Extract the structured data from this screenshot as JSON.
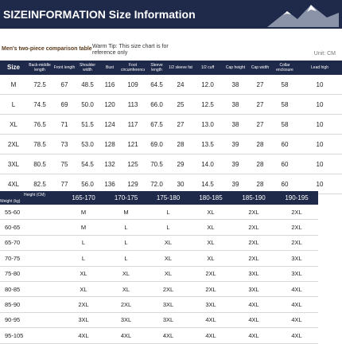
{
  "header": {
    "title": "SIZEINFORMATION Size Information"
  },
  "subtitle": "Men's two-piece comparison table",
  "warm_tip": "Warm Tip: This size chart is for reference only",
  "unit": "Unit: CM",
  "measurements": {
    "columns": [
      "Size",
      "Back-middle length",
      "Front length",
      "Shoulder width",
      "Bust",
      "Foot circumference",
      "Sleeve length",
      "1/2 sleeve fat",
      "1/2 cuff",
      "Cap height",
      "Cap width",
      "Collar enclosure",
      "Lead high"
    ],
    "rows": [
      [
        "M",
        "72.5",
        "67",
        "48.5",
        "116",
        "109",
        "64.5",
        "24",
        "12.0",
        "38",
        "27",
        "58",
        "10"
      ],
      [
        "L",
        "74.5",
        "69",
        "50.0",
        "120",
        "113",
        "66.0",
        "25",
        "12.5",
        "38",
        "27",
        "58",
        "10"
      ],
      [
        "XL",
        "76.5",
        "71",
        "51.5",
        "124",
        "117",
        "67.5",
        "27",
        "13.0",
        "38",
        "27",
        "58",
        "10"
      ],
      [
        "2XL",
        "78.5",
        "73",
        "53.0",
        "128",
        "121",
        "69.0",
        "28",
        "13.5",
        "39",
        "28",
        "60",
        "10"
      ],
      [
        "3XL",
        "80.5",
        "75",
        "54.5",
        "132",
        "125",
        "70.5",
        "29",
        "14.0",
        "39",
        "28",
        "60",
        "10"
      ],
      [
        "4XL",
        "82.5",
        "77",
        "56.0",
        "136",
        "129",
        "72.0",
        "30",
        "14.5",
        "39",
        "28",
        "60",
        "10"
      ]
    ]
  },
  "size_guide": {
    "corner_top": "Height (CM)",
    "corner_bottom": "Weight (kg)",
    "columns": [
      "165-170",
      "170-175",
      "175-180",
      "180-185",
      "185-190",
      "190-195"
    ],
    "rows": [
      {
        "weight": "55-60",
        "sizes": [
          "M",
          "M",
          "L",
          "XL",
          "2XL",
          "2XL"
        ]
      },
      {
        "weight": "60-65",
        "sizes": [
          "M",
          "L",
          "L",
          "XL",
          "2XL",
          "2XL"
        ]
      },
      {
        "weight": "65-70",
        "sizes": [
          "L",
          "L",
          "XL",
          "XL",
          "2XL",
          "2XL"
        ]
      },
      {
        "weight": "70-75",
        "sizes": [
          "L",
          "L",
          "XL",
          "XL",
          "2XL",
          "3XL"
        ]
      },
      {
        "weight": "75-80",
        "sizes": [
          "XL",
          "XL",
          "XL",
          "2XL",
          "3XL",
          "3XL"
        ]
      },
      {
        "weight": "80-85",
        "sizes": [
          "XL",
          "XL",
          "2XL",
          "2XL",
          "3XL",
          "4XL"
        ]
      },
      {
        "weight": "85-90",
        "sizes": [
          "2XL",
          "2XL",
          "3XL",
          "3XL",
          "4XL",
          "4XL"
        ]
      },
      {
        "weight": "90-95",
        "sizes": [
          "3XL",
          "3XL",
          "3XL",
          "4XL",
          "4XL",
          "4XL"
        ]
      },
      {
        "weight": "95-105",
        "sizes": [
          "4XL",
          "4XL",
          "4XL",
          "4XL",
          "4XL",
          "4XL"
        ]
      }
    ]
  }
}
